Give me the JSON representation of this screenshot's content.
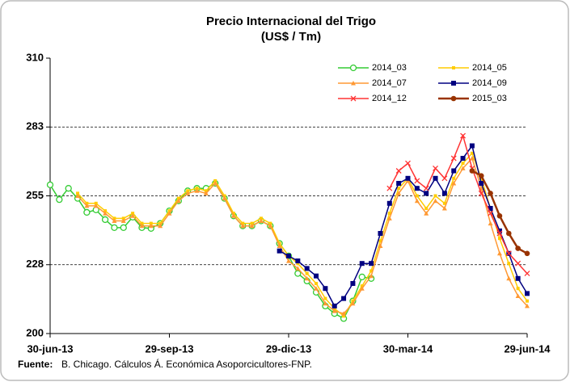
{
  "chart_data": {
    "type": "line",
    "title": "Precio Internacional del Trigo",
    "subtitle": "(US$ / Tm)",
    "source_label": "Fuente:",
    "source": "B. Chicago. Cálculos Á. Económica Asoporcicultores-FNP.",
    "categories": [
      "30-jun-13",
      null,
      null,
      null,
      null,
      null,
      null,
      null,
      null,
      null,
      null,
      null,
      null,
      "29-sep-13",
      null,
      null,
      null,
      null,
      null,
      null,
      null,
      null,
      null,
      null,
      null,
      null,
      "29-dic-13",
      null,
      null,
      null,
      null,
      null,
      null,
      null,
      null,
      null,
      null,
      null,
      null,
      "30-mar-14",
      null,
      null,
      null,
      null,
      null,
      null,
      null,
      null,
      null,
      null,
      null,
      null,
      "29-jun-14"
    ],
    "ylim": [
      200,
      310
    ],
    "yticks": [
      200,
      {
        "value": 227.5,
        "label": "228"
      },
      255,
      {
        "value": 282.5,
        "label": "283"
      },
      310
    ],
    "grid": true,
    "legend": "top-right",
    "series": [
      {
        "name": "2014_03",
        "color": "#33cc33",
        "marker": "circle-open",
        "values": [
          259.4,
          253.5,
          258,
          254,
          248.4,
          249.4,
          245.5,
          242.3,
          242.3,
          246.5,
          242.3,
          242,
          244,
          249,
          253,
          257,
          258,
          258,
          260,
          254,
          247,
          243,
          243,
          245,
          243,
          236,
          231,
          224,
          221,
          216.5,
          211,
          208,
          206,
          213,
          222.6,
          222,
          null,
          null,
          null,
          null,
          null,
          null,
          null,
          null,
          null,
          null,
          null,
          null,
          null,
          null,
          null,
          null,
          null
        ]
      },
      {
        "name": "2014_05",
        "color": "#ffcc00",
        "marker": "square-small",
        "values": [
          null,
          null,
          null,
          256,
          252,
          252,
          249,
          246,
          246,
          248,
          244,
          244,
          244,
          249,
          254,
          257,
          258,
          257,
          261,
          255,
          248,
          244,
          244,
          246,
          244,
          236,
          231,
          228,
          224,
          220,
          214,
          210,
          207,
          213,
          219,
          225,
          237,
          248,
          258,
          262,
          255,
          250,
          255,
          252,
          262,
          268,
          272,
          262,
          250,
          238,
          228,
          218,
          213
        ]
      },
      {
        "name": "2014_07",
        "color": "#ff9933",
        "marker": "triangle",
        "values": [
          null,
          null,
          null,
          255,
          251,
          251,
          248,
          245,
          245,
          247,
          243,
          243,
          243,
          248,
          253,
          256,
          257,
          256,
          260,
          254,
          247,
          243,
          243,
          245,
          243,
          235,
          229,
          226,
          222,
          218,
          212,
          209,
          208,
          212,
          218,
          223,
          235,
          246,
          256,
          261,
          253,
          248,
          253,
          250,
          260,
          266,
          270,
          258,
          244,
          232,
          222,
          215,
          211
        ]
      },
      {
        "name": "2014_09",
        "color": "#000080",
        "marker": "square",
        "values": [
          null,
          null,
          null,
          null,
          null,
          null,
          null,
          null,
          null,
          null,
          null,
          null,
          null,
          null,
          null,
          null,
          null,
          null,
          null,
          null,
          null,
          null,
          null,
          null,
          null,
          233,
          231,
          229,
          226,
          223,
          218,
          211,
          214,
          220,
          228,
          228,
          240,
          252,
          260,
          262,
          258,
          256,
          262,
          256,
          265,
          270,
          275,
          260,
          250,
          241,
          232,
          222,
          216
        ]
      },
      {
        "name": "2014_12",
        "color": "#ff3333",
        "marker": "x",
        "values": [
          null,
          null,
          null,
          null,
          null,
          null,
          null,
          null,
          null,
          null,
          null,
          null,
          null,
          null,
          null,
          null,
          null,
          null,
          null,
          null,
          null,
          null,
          null,
          null,
          null,
          null,
          null,
          null,
          null,
          null,
          null,
          null,
          null,
          null,
          null,
          null,
          null,
          258,
          265,
          268,
          261,
          258,
          266,
          262,
          270,
          279,
          266,
          256,
          248,
          240,
          232,
          228,
          224
        ]
      },
      {
        "name": "2015_03",
        "color": "#993300",
        "marker": "circle",
        "values": [
          null,
          null,
          null,
          null,
          null,
          null,
          null,
          null,
          null,
          null,
          null,
          null,
          null,
          null,
          null,
          null,
          null,
          null,
          null,
          null,
          null,
          null,
          null,
          null,
          null,
          null,
          null,
          null,
          null,
          null,
          null,
          null,
          null,
          null,
          null,
          null,
          null,
          null,
          null,
          null,
          null,
          null,
          null,
          null,
          null,
          null,
          265,
          263,
          256,
          247,
          240,
          234,
          232
        ]
      }
    ]
  }
}
